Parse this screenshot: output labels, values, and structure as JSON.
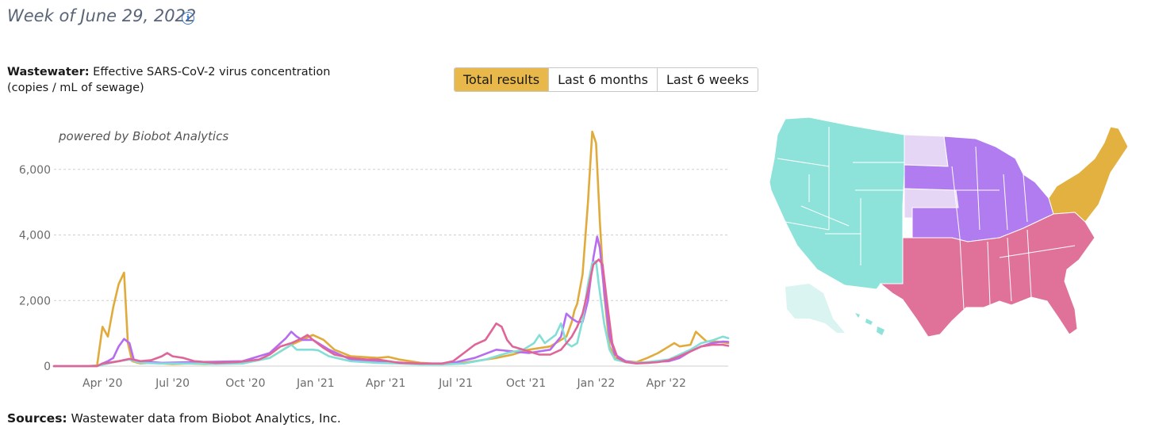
{
  "header": {
    "week": "Week of June 29, 2022",
    "info_icon": "info-icon"
  },
  "chart_subtitle": {
    "bold": "Wastewater:",
    "text": " Effective SARS-CoV-2 virus concentration",
    "line2": "(copies / mL of sewage)"
  },
  "tabs": [
    {
      "label": "Total results",
      "active": true
    },
    {
      "label": "Last 6 months",
      "active": false
    },
    {
      "label": "Last 6 weeks",
      "active": false
    }
  ],
  "sources": {
    "bold": "Sources:",
    "text": " Wastewater data from Biobot Analytics, Inc."
  },
  "chart_data": {
    "type": "line",
    "credit": "powered by Biobot Analytics",
    "ylim": [
      0,
      7300
    ],
    "yticks": [
      0,
      2000,
      4000,
      6000
    ],
    "ytick_labels": [
      "0",
      "2,000",
      "4,000",
      "6,000"
    ],
    "x_range": [
      0,
      125
    ],
    "xticks": [
      {
        "label": "Apr '20",
        "x": 9
      },
      {
        "label": "Jul '20",
        "x": 22
      },
      {
        "label": "Oct '20",
        "x": 35.5
      },
      {
        "label": "Jan '21",
        "x": 48.5
      },
      {
        "label": "Apr '21",
        "x": 61.5
      },
      {
        "label": "Jul '21",
        "x": 74.5
      },
      {
        "label": "Oct '21",
        "x": 87.5
      },
      {
        "label": "Jan '22",
        "x": 100.5
      },
      {
        "label": "Apr '22",
        "x": 113.5
      }
    ],
    "grid": true,
    "series": [
      {
        "color": "#e0ab3b",
        "points": [
          [
            0,
            0
          ],
          [
            6,
            0
          ],
          [
            8,
            20
          ],
          [
            9,
            1200
          ],
          [
            10,
            900
          ],
          [
            11,
            1800
          ],
          [
            12,
            2500
          ],
          [
            13,
            2850
          ],
          [
            13.7,
            700
          ],
          [
            14.5,
            150
          ],
          [
            16,
            80
          ],
          [
            18,
            100
          ],
          [
            20,
            80
          ],
          [
            22,
            60
          ],
          [
            25,
            80
          ],
          [
            28,
            60
          ],
          [
            32,
            80
          ],
          [
            36,
            150
          ],
          [
            40,
            250
          ],
          [
            44,
            650
          ],
          [
            46,
            800
          ],
          [
            48,
            950
          ],
          [
            50,
            800
          ],
          [
            52,
            500
          ],
          [
            55,
            300
          ],
          [
            60,
            250
          ],
          [
            62,
            280
          ],
          [
            64,
            200
          ],
          [
            68,
            100
          ],
          [
            72,
            60
          ],
          [
            75,
            80
          ],
          [
            78,
            150
          ],
          [
            82,
            250
          ],
          [
            85,
            350
          ],
          [
            88,
            500
          ],
          [
            92,
            600
          ],
          [
            95,
            900
          ],
          [
            96,
            1350
          ],
          [
            96.5,
            1700
          ],
          [
            97,
            1900
          ],
          [
            98,
            2800
          ],
          [
            99,
            5000
          ],
          [
            99.8,
            7150
          ],
          [
            100.5,
            6800
          ],
          [
            101.2,
            4400
          ],
          [
            102,
            2200
          ],
          [
            103,
            600
          ],
          [
            104,
            250
          ],
          [
            106,
            150
          ],
          [
            108,
            120
          ],
          [
            110,
            250
          ],
          [
            112,
            400
          ],
          [
            114,
            600
          ],
          [
            115,
            700
          ],
          [
            116,
            600
          ],
          [
            118,
            650
          ],
          [
            119,
            1050
          ],
          [
            120,
            900
          ],
          [
            121,
            750
          ],
          [
            123,
            750
          ],
          [
            125,
            700
          ]
        ]
      },
      {
        "color": "#b66cf0",
        "points": [
          [
            0,
            0
          ],
          [
            8,
            0
          ],
          [
            9,
            80
          ],
          [
            10,
            150
          ],
          [
            11,
            250
          ],
          [
            12,
            600
          ],
          [
            13,
            830
          ],
          [
            14,
            700
          ],
          [
            14.8,
            200
          ],
          [
            16,
            150
          ],
          [
            20,
            100
          ],
          [
            25,
            120
          ],
          [
            30,
            130
          ],
          [
            35,
            150
          ],
          [
            40,
            400
          ],
          [
            43,
            850
          ],
          [
            44,
            1050
          ],
          [
            45,
            900
          ],
          [
            46,
            800
          ],
          [
            48,
            800
          ],
          [
            49,
            700
          ],
          [
            51,
            500
          ],
          [
            55,
            200
          ],
          [
            60,
            150
          ],
          [
            65,
            100
          ],
          [
            70,
            60
          ],
          [
            74,
            100
          ],
          [
            78,
            250
          ],
          [
            82,
            500
          ],
          [
            85,
            450
          ],
          [
            88,
            400
          ],
          [
            92,
            500
          ],
          [
            94,
            900
          ],
          [
            95,
            1600
          ],
          [
            96,
            1450
          ],
          [
            97,
            1350
          ],
          [
            98,
            1350
          ],
          [
            99,
            2000
          ],
          [
            100,
            3300
          ],
          [
            100.7,
            3950
          ],
          [
            101.2,
            3600
          ],
          [
            102,
            2300
          ],
          [
            103,
            900
          ],
          [
            104,
            350
          ],
          [
            106,
            150
          ],
          [
            108,
            100
          ],
          [
            110,
            120
          ],
          [
            114,
            150
          ],
          [
            116,
            250
          ],
          [
            118,
            450
          ],
          [
            120,
            600
          ],
          [
            122,
            700
          ],
          [
            124,
            750
          ],
          [
            125,
            740
          ]
        ]
      },
      {
        "color": "#82ded6",
        "points": [
          [
            0,
            0
          ],
          [
            8,
            0
          ],
          [
            9,
            40
          ],
          [
            10,
            80
          ],
          [
            12,
            150
          ],
          [
            14,
            200
          ],
          [
            16,
            100
          ],
          [
            20,
            80
          ],
          [
            25,
            80
          ],
          [
            30,
            60
          ],
          [
            35,
            80
          ],
          [
            40,
            250
          ],
          [
            42,
            450
          ],
          [
            44,
            650
          ],
          [
            45,
            500
          ],
          [
            48,
            500
          ],
          [
            49,
            480
          ],
          [
            51,
            300
          ],
          [
            55,
            150
          ],
          [
            60,
            100
          ],
          [
            64,
            80
          ],
          [
            68,
            50
          ],
          [
            72,
            50
          ],
          [
            76,
            80
          ],
          [
            80,
            200
          ],
          [
            84,
            400
          ],
          [
            87,
            500
          ],
          [
            89,
            700
          ],
          [
            90,
            950
          ],
          [
            91,
            700
          ],
          [
            93,
            950
          ],
          [
            94,
            1300
          ],
          [
            95,
            700
          ],
          [
            96,
            600
          ],
          [
            97,
            700
          ],
          [
            98,
            1400
          ],
          [
            99,
            2500
          ],
          [
            99.8,
            3150
          ],
          [
            100.5,
            3200
          ],
          [
            101,
            2500
          ],
          [
            102,
            1300
          ],
          [
            103,
            500
          ],
          [
            104,
            200
          ],
          [
            106,
            120
          ],
          [
            108,
            100
          ],
          [
            110,
            120
          ],
          [
            114,
            200
          ],
          [
            118,
            500
          ],
          [
            120,
            700
          ],
          [
            122,
            780
          ],
          [
            124,
            900
          ],
          [
            125,
            850
          ]
        ]
      },
      {
        "color": "#df6599",
        "points": [
          [
            0,
            0
          ],
          [
            8,
            0
          ],
          [
            9,
            80
          ],
          [
            10,
            100
          ],
          [
            12,
            150
          ],
          [
            14,
            220
          ],
          [
            16,
            150
          ],
          [
            18,
            180
          ],
          [
            20,
            300
          ],
          [
            21,
            400
          ],
          [
            22,
            300
          ],
          [
            24,
            250
          ],
          [
            26,
            150
          ],
          [
            30,
            100
          ],
          [
            34,
            120
          ],
          [
            38,
            200
          ],
          [
            40,
            350
          ],
          [
            42,
            600
          ],
          [
            44,
            700
          ],
          [
            46,
            850
          ],
          [
            47,
            950
          ],
          [
            48,
            800
          ],
          [
            50,
            550
          ],
          [
            52,
            350
          ],
          [
            55,
            250
          ],
          [
            58,
            200
          ],
          [
            60,
            200
          ],
          [
            64,
            100
          ],
          [
            68,
            80
          ],
          [
            72,
            80
          ],
          [
            74,
            150
          ],
          [
            76,
            400
          ],
          [
            78,
            650
          ],
          [
            80,
            800
          ],
          [
            81,
            1050
          ],
          [
            82,
            1300
          ],
          [
            83,
            1200
          ],
          [
            84,
            800
          ],
          [
            85,
            600
          ],
          [
            86,
            550
          ],
          [
            88,
            450
          ],
          [
            90,
            350
          ],
          [
            92,
            350
          ],
          [
            94,
            500
          ],
          [
            96,
            900
          ],
          [
            97,
            1200
          ],
          [
            98,
            1600
          ],
          [
            99,
            2300
          ],
          [
            100,
            3100
          ],
          [
            101,
            3250
          ],
          [
            101.7,
            3100
          ],
          [
            102.5,
            2000
          ],
          [
            103.5,
            700
          ],
          [
            104.5,
            250
          ],
          [
            106,
            120
          ],
          [
            108,
            80
          ],
          [
            110,
            100
          ],
          [
            112,
            120
          ],
          [
            114,
            180
          ],
          [
            116,
            300
          ],
          [
            118,
            450
          ],
          [
            120,
            600
          ],
          [
            122,
            650
          ],
          [
            124,
            650
          ],
          [
            125,
            620
          ]
        ]
      }
    ]
  },
  "map": {
    "colors": {
      "west": "#8de3d9",
      "plains": "#e6d6f5",
      "midwest": "#b07cf0",
      "south": "#e07199",
      "northeast": "#e2b140",
      "alaska": "#d9f4f1"
    }
  }
}
